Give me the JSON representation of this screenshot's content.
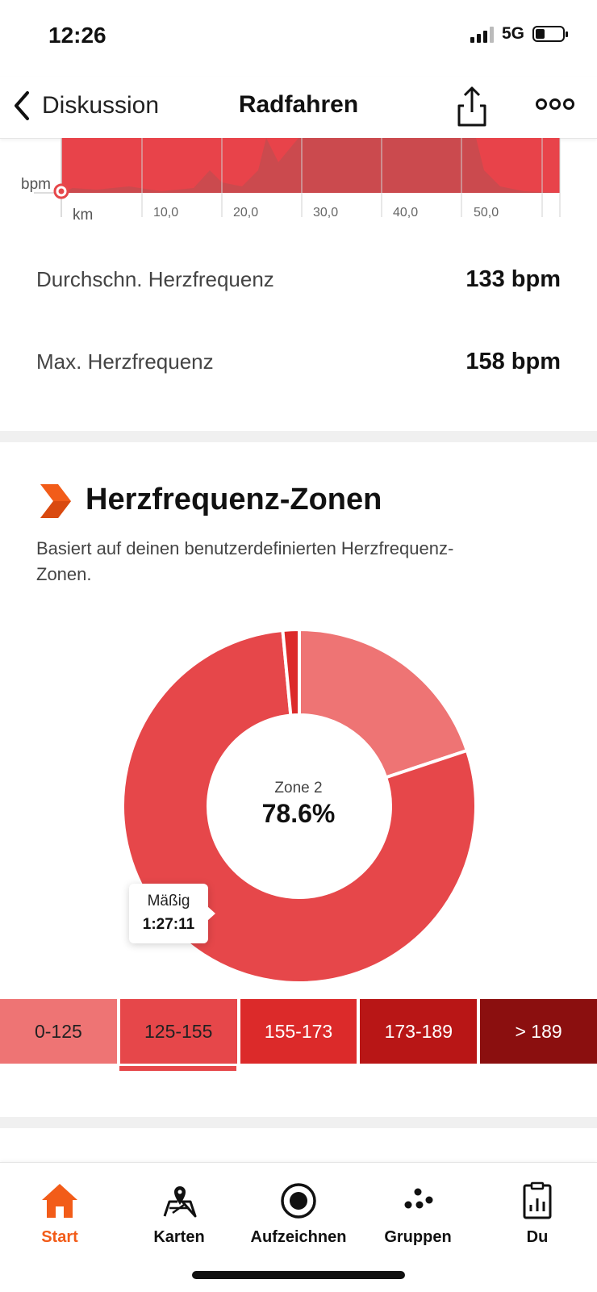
{
  "status_bar": {
    "time": "12:26",
    "network": "5G",
    "signal_bars": 3,
    "battery_level": 0.35
  },
  "header": {
    "back_label": "Diskussion",
    "title": "Radfahren"
  },
  "hr_chart": {
    "y_unit_label": "bpm",
    "x_unit_label": "km",
    "x_ticks": [
      "10,0",
      "20,0",
      "30,0",
      "40,0",
      "50,0"
    ],
    "fill_color": "#e8434a",
    "highlight_color": "#c84b4f"
  },
  "stats": [
    {
      "label": "Durchschn. Herzfrequenz",
      "value": "133 bpm"
    },
    {
      "label": "Max. Herzfrequenz",
      "value": "158 bpm"
    }
  ],
  "zones_section": {
    "title": "Herzfrequenz-Zonen",
    "description": "Basiert auf deinen benutzerdefinierten Herzfrequenz-Zonen.",
    "icon": "chevron-arrow-icon",
    "accent": "#f25c19"
  },
  "chart_data": {
    "type": "pie",
    "donut": true,
    "slices": [
      {
        "zone": "0-125",
        "percent": 19.9,
        "color": "#ee7474"
      },
      {
        "zone": "125-155",
        "percent": 78.6,
        "color": "#e6474a"
      },
      {
        "zone": "155-173",
        "percent": 1.5,
        "color": "#dc2a2a"
      }
    ],
    "center_label": "Zone 2",
    "center_value": "78.6%",
    "tooltip": {
      "name": "Mäßig",
      "time": "1:27:11"
    }
  },
  "zone_bar": {
    "segments": [
      {
        "label": "0-125",
        "color": "#ee7474",
        "text_color": "#222222"
      },
      {
        "label": "125-155",
        "color": "#e6474a",
        "text_color": "#222222"
      },
      {
        "label": "155-173",
        "color": "#dc2a2a",
        "text_color": "#ffffff"
      },
      {
        "label": "173-189",
        "color": "#b81616",
        "text_color": "#ffffff"
      },
      {
        "label": "> 189",
        "color": "#8b0f0f",
        "text_color": "#ffffff"
      }
    ],
    "selected_index": 1
  },
  "tabbar": {
    "tabs": [
      {
        "label": "Start",
        "icon": "home-icon",
        "active": true
      },
      {
        "label": "Karten",
        "icon": "map-icon",
        "active": false
      },
      {
        "label": "Aufzeichnen",
        "icon": "record-icon",
        "active": false
      },
      {
        "label": "Gruppen",
        "icon": "groups-icon",
        "active": false
      },
      {
        "label": "Du",
        "icon": "profile-clipboard-icon",
        "active": false
      }
    ],
    "active_color": "#f25c19"
  }
}
